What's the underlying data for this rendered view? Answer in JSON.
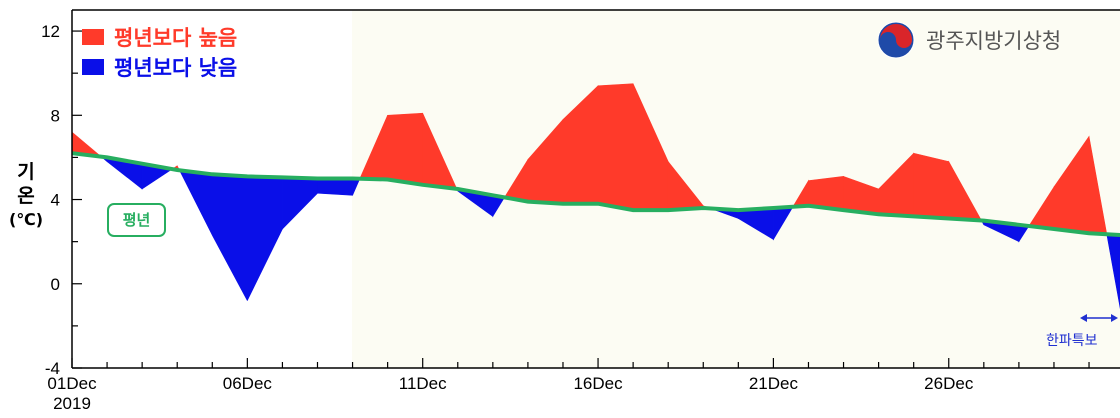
{
  "chart_data": {
    "type": "area",
    "x": [
      "01Dec",
      "02Dec",
      "03Dec",
      "04Dec",
      "05Dec",
      "06Dec",
      "07Dec",
      "08Dec",
      "09Dec",
      "10Dec",
      "11Dec",
      "12Dec",
      "13Dec",
      "14Dec",
      "15Dec",
      "16Dec",
      "17Dec",
      "18Dec",
      "19Dec",
      "20Dec",
      "21Dec",
      "22Dec",
      "23Dec",
      "24Dec",
      "25Dec",
      "26Dec",
      "27Dec",
      "28Dec",
      "29Dec",
      "30Dec",
      "31Dec"
    ],
    "series": [
      {
        "name": "평년",
        "values": [
          6.2,
          6.0,
          5.7,
          5.4,
          5.2,
          5.1,
          5.05,
          5.0,
          5.0,
          4.95,
          4.7,
          4.5,
          4.2,
          3.9,
          3.8,
          3.8,
          3.5,
          3.5,
          3.6,
          3.5,
          3.6,
          3.7,
          3.5,
          3.3,
          3.2,
          3.1,
          3.0,
          2.8,
          2.6,
          2.4,
          2.3
        ]
      },
      {
        "values": [
          7.2,
          5.8,
          4.5,
          5.6,
          2.3,
          -0.8,
          2.6,
          4.3,
          4.2,
          8.0,
          8.1,
          4.4,
          3.2,
          5.9,
          7.8,
          9.4,
          9.5,
          5.8,
          3.7,
          3.1,
          2.1,
          4.9,
          5.1,
          4.5,
          6.2,
          5.8,
          2.8,
          2.0,
          4.6,
          7.0,
          -2.2
        ]
      }
    ],
    "xlabel": "",
    "ylabel": "기온 (℃)",
    "ylim": [
      -4,
      13
    ],
    "yticks": [
      -4,
      0,
      4,
      8,
      12
    ],
    "xticks": [
      {
        "index": 0,
        "label": "01Dec",
        "sublabel": "2019"
      },
      {
        "index": 5,
        "label": "06Dec",
        "sublabel": ""
      },
      {
        "index": 10,
        "label": "11Dec",
        "sublabel": ""
      },
      {
        "index": 15,
        "label": "16Dec",
        "sublabel": ""
      },
      {
        "index": 20,
        "label": "21Dec",
        "sublabel": ""
      },
      {
        "index": 25,
        "label": "26Dec",
        "sublabel": ""
      }
    ],
    "legend": {
      "placement": "top-left",
      "items": [
        {
          "label": "평년보다 높음",
          "color": "#ff3a2a"
        },
        {
          "label": "평년보다 낮음",
          "color": "#0a0fe8"
        }
      ]
    },
    "colors": {
      "above": "#ff3a2a",
      "below": "#0a0fe8",
      "normal": "#27ae60",
      "background": "#fcfcf3",
      "coldwave": "#1f2fd0"
    },
    "annotations": {
      "normal_label": "평년",
      "coldwave_label": "한파특보"
    },
    "grid": false
  },
  "ylabel_lines": [
    "기",
    "온",
    "(℃)"
  ],
  "agency": {
    "name": "광주지방기상청",
    "logo_icon": "kma-taegeuk-logo-icon"
  }
}
